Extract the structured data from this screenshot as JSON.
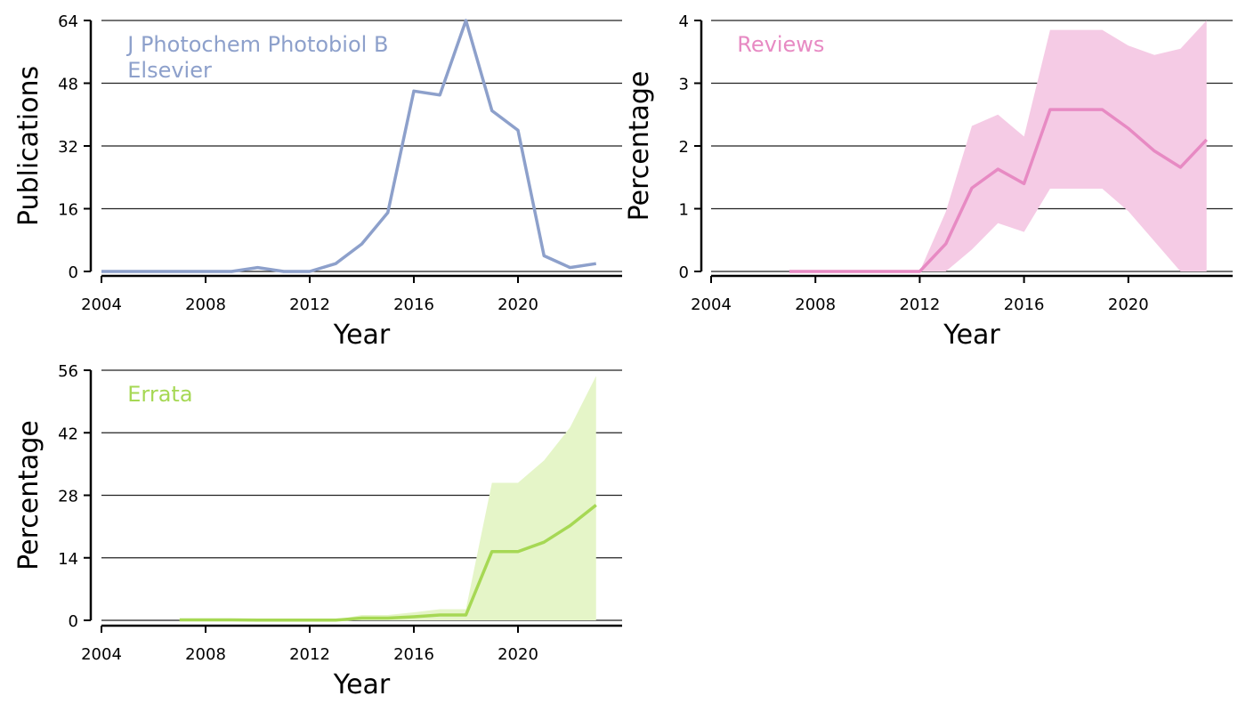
{
  "chart_data": [
    {
      "type": "line",
      "xlabel": "Year",
      "ylabel": "Publications",
      "xlim": [
        2004,
        2024
      ],
      "ylim": [
        0,
        64
      ],
      "xticks": [
        2004,
        2008,
        2012,
        2016,
        2020
      ],
      "yticks": [
        0,
        16,
        32,
        48,
        64
      ],
      "grid": "horizontal",
      "annotation": [
        "J Photochem Photobiol B",
        "Elsevier"
      ],
      "color": "#8da0cb",
      "x": [
        2004,
        2005,
        2006,
        2007,
        2008,
        2009,
        2010,
        2011,
        2012,
        2013,
        2014,
        2015,
        2016,
        2017,
        2018,
        2019,
        2020,
        2021,
        2022,
        2023
      ],
      "y": [
        0,
        0,
        0,
        0,
        0,
        0,
        1,
        0,
        0,
        2,
        7,
        15,
        46,
        45,
        64,
        41,
        36,
        4,
        1,
        2
      ]
    },
    {
      "type": "line",
      "xlabel": "Year",
      "ylabel": "Percentage",
      "xlim": [
        2004,
        2024
      ],
      "ylim": [
        0,
        4
      ],
      "xticks": [
        2004,
        2008,
        2012,
        2016,
        2020
      ],
      "yticks": [
        0,
        1,
        2,
        3,
        4
      ],
      "grid": "horizontal",
      "annotation": [
        "Reviews"
      ],
      "color": "#e78ac3",
      "fill_color": "#f5cbe5",
      "x": [
        2007,
        2008,
        2009,
        2010,
        2011,
        2012,
        2013,
        2014,
        2015,
        2016,
        2017,
        2018,
        2019,
        2020,
        2021,
        2022,
        2023
      ],
      "y": [
        0,
        0,
        0,
        0,
        0,
        0,
        0.44,
        1.33,
        1.63,
        1.4,
        2.58,
        2.58,
        2.58,
        2.28,
        1.92,
        1.66,
        2.1
      ],
      "lower": [
        0,
        0,
        0,
        0,
        0,
        0,
        0,
        0.35,
        0.77,
        0.63,
        1.32,
        1.32,
        1.32,
        0.96,
        0.48,
        0,
        0
      ],
      "upper": [
        0,
        0,
        0,
        0,
        0,
        0,
        0.95,
        2.32,
        2.5,
        2.15,
        3.85,
        3.85,
        3.85,
        3.6,
        3.45,
        3.55,
        4.1
      ]
    },
    {
      "type": "line",
      "xlabel": "Year",
      "ylabel": "Percentage",
      "xlim": [
        2004,
        2024
      ],
      "ylim": [
        0,
        56
      ],
      "xticks": [
        2004,
        2008,
        2012,
        2016,
        2020
      ],
      "yticks": [
        0,
        14,
        28,
        42,
        56
      ],
      "grid": "horizontal",
      "annotation": [
        "Errata"
      ],
      "color": "#a6d854",
      "fill_color": "#e5f5c8",
      "x": [
        2007,
        2008,
        2009,
        2010,
        2011,
        2012,
        2013,
        2014,
        2015,
        2016,
        2017,
        2018,
        2019,
        2020,
        2021,
        2022,
        2023
      ],
      "y": [
        0.1,
        0.1,
        0.1,
        0.05,
        0.05,
        0.05,
        0.05,
        0.5,
        0.5,
        0.8,
        1.2,
        1.2,
        15.4,
        15.4,
        17.5,
        21.2,
        25.8
      ],
      "lower": [
        0,
        0,
        0,
        0,
        0,
        0,
        0,
        0,
        0,
        0,
        0,
        0,
        0,
        0,
        0,
        0,
        0
      ],
      "upper": [
        0.2,
        0.2,
        0.2,
        0.1,
        0.1,
        0.1,
        0.1,
        1.2,
        1.2,
        1.8,
        2.5,
        2.5,
        30.8,
        30.8,
        35.8,
        43.2,
        54.7
      ]
    }
  ]
}
